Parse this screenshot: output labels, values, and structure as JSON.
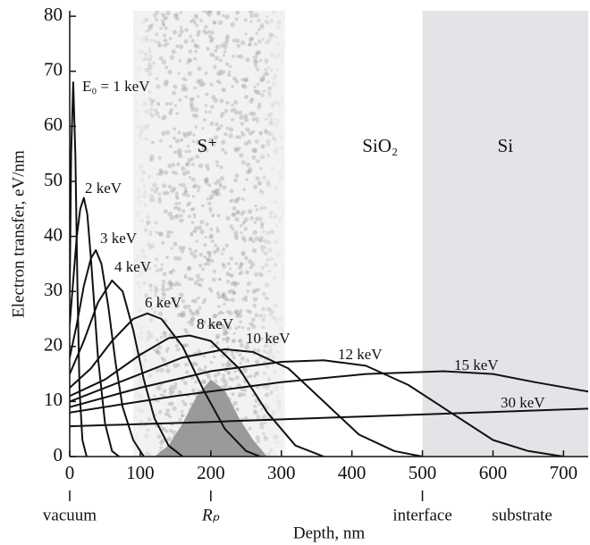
{
  "chart_data": {
    "type": "line",
    "xlabel": "Depth, nm",
    "ylabel": "Electron transfer, eV/nm",
    "xlim": [
      0,
      735
    ],
    "ylim": [
      0,
      81
    ],
    "xticks": [
      0,
      100,
      200,
      300,
      400,
      500,
      600,
      700
    ],
    "yticks": [
      0,
      10,
      20,
      30,
      40,
      50,
      60,
      70,
      80
    ],
    "regions": [
      {
        "label": "S⁺",
        "from": 90,
        "to": 305,
        "color": "#f2f2f2"
      },
      {
        "label": "SiO₂"
      },
      {
        "label": "Si",
        "from": 500,
        "to": 735,
        "color": "#e4e4e8"
      }
    ],
    "annotations": [
      {
        "text": "vacuum",
        "x": 0
      },
      {
        "text": "Rₚ",
        "x": 200
      },
      {
        "text": "interface",
        "x": 500
      }
    ],
    "right_label": "substrate",
    "implant_profile": {
      "color": "#9a9a9a",
      "x": [
        120,
        140,
        160,
        180,
        200,
        220,
        240,
        260,
        280
      ],
      "values": [
        0,
        2,
        6,
        11,
        14,
        12,
        7,
        3,
        0
      ]
    },
    "series": [
      {
        "name": "E₀ = 1 keV",
        "color": "#111111",
        "x": [
          0,
          2,
          5,
          8,
          11,
          14,
          18,
          24
        ],
        "values": [
          30,
          55,
          68,
          55,
          30,
          12,
          3,
          0
        ]
      },
      {
        "name": "2 keV",
        "color": "#111111",
        "x": [
          0,
          5,
          10,
          15,
          20,
          25,
          30,
          40,
          50,
          60,
          70
        ],
        "values": [
          24,
          32,
          40,
          45,
          47,
          44,
          36,
          18,
          6,
          1,
          0
        ]
      },
      {
        "name": "3 keV",
        "color": "#111111",
        "x": [
          0,
          10,
          20,
          30,
          37,
          45,
          55,
          65,
          75,
          90,
          105
        ],
        "values": [
          18,
          24,
          31,
          36,
          37.5,
          35,
          27,
          17,
          9,
          3,
          0
        ]
      },
      {
        "name": "4 keV",
        "color": "#111111",
        "x": [
          0,
          20,
          40,
          60,
          75,
          90,
          105,
          120,
          140,
          160
        ],
        "values": [
          15,
          21,
          28,
          32,
          30,
          23,
          14,
          7,
          2,
          0
        ]
      },
      {
        "name": "6 keV",
        "color": "#111111",
        "x": [
          0,
          30,
          60,
          90,
          110,
          130,
          160,
          190,
          220,
          250,
          270
        ],
        "values": [
          12.5,
          16,
          21,
          25,
          26,
          25,
          20,
          12,
          5,
          1,
          0
        ]
      },
      {
        "name": "8 keV",
        "color": "#111111",
        "x": [
          0,
          50,
          100,
          140,
          170,
          200,
          240,
          280,
          320,
          360
        ],
        "values": [
          11,
          14,
          18.5,
          21.5,
          22,
          21,
          16,
          8,
          2,
          0
        ]
      },
      {
        "name": "10 keV",
        "color": "#111111",
        "x": [
          0,
          80,
          160,
          220,
          260,
          310,
          360,
          410,
          460,
          500
        ],
        "values": [
          10,
          14,
          18,
          19.5,
          19,
          16,
          10,
          4,
          1,
          0
        ]
      },
      {
        "name": "12 keV",
        "color": "#111111",
        "x": [
          0,
          100,
          200,
          300,
          360,
          420,
          480,
          540,
          600,
          650,
          700
        ],
        "values": [
          9,
          12.5,
          15.5,
          17.2,
          17.5,
          16.5,
          13,
          8,
          3,
          1,
          0
        ]
      },
      {
        "name": "15 keV",
        "color": "#111111",
        "x": [
          0,
          150,
          300,
          420,
          530,
          600,
          660,
          735
        ],
        "values": [
          8,
          11,
          13.5,
          15,
          15.5,
          15,
          13.5,
          11.8
        ]
      },
      {
        "name": "30 keV",
        "color": "#111111",
        "x": [
          0,
          200,
          400,
          600,
          735
        ],
        "values": [
          5.5,
          6.3,
          7.2,
          8.1,
          8.7
        ]
      }
    ]
  }
}
